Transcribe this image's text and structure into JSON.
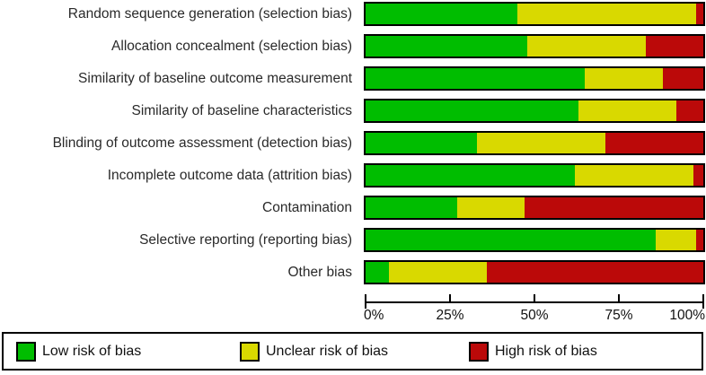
{
  "chart_data": {
    "type": "bar",
    "stacked": true,
    "orientation": "horizontal",
    "title": "",
    "xlabel": "",
    "ylabel": "",
    "grid": false,
    "legend_position": "bottom",
    "categories": [
      "Random sequence generation (selection bias)",
      "Allocation concealment (selection bias)",
      "Similarity of baseline outcome measurement",
      "Similarity of baseline characteristics",
      "Blinding of outcome assessment (detection bias)",
      "Incomplete outcome data (attrition bias)",
      "Contamination",
      "Selective reporting (reporting bias)",
      "Other bias"
    ],
    "series": [
      {
        "key": "low-risk",
        "name": "Low risk of bias",
        "color": "#00BD00",
        "values": [
          45,
          48,
          65,
          63,
          33,
          62,
          27,
          86,
          7
        ]
      },
      {
        "key": "unclear-risk",
        "name": "Unclear risk of bias",
        "color": "#D9D900",
        "values": [
          53,
          35,
          23,
          29,
          38,
          35,
          20,
          12,
          29
        ]
      },
      {
        "key": "high-risk",
        "name": "High risk of bias",
        "color": "#BB0909",
        "values": [
          2,
          17,
          12,
          8,
          29,
          3,
          53,
          2,
          64
        ]
      }
    ],
    "x_axis": {
      "range": [
        0,
        100
      ],
      "unit": "%",
      "ticks": [
        "0%",
        "25%",
        "50%",
        "75%",
        "100%"
      ]
    }
  },
  "colors": {
    "low_risk": "#00BD00",
    "unclear_risk": "#D9D900",
    "high_risk": "#BB0909",
    "bar_border": "#000000",
    "background": "#FFFFFF"
  }
}
